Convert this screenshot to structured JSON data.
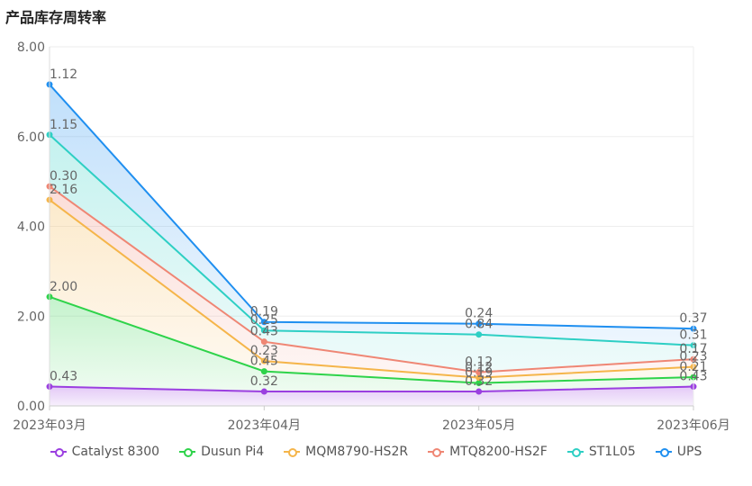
{
  "chart_data": {
    "type": "area",
    "title": "产品库存周转率",
    "x": [
      "2023年03月",
      "2023年04月",
      "2023年05月",
      "2023年06月"
    ],
    "ylim": [
      0,
      8
    ],
    "yticks": [
      "0.00",
      "2.00",
      "4.00",
      "6.00",
      "8.00"
    ],
    "stacked": true,
    "grid": true,
    "legend_position": "bottom",
    "series": [
      {
        "name": "Catalyst 8300",
        "color": "#9b3fe0",
        "values": [
          0.43,
          0.32,
          0.32,
          0.43
        ],
        "labels": [
          "0.43",
          "0.32",
          "0.32",
          "0.43"
        ]
      },
      {
        "name": "Dusun Pi4",
        "color": "#2ed34a",
        "values": [
          2.0,
          0.45,
          0.19,
          0.21
        ],
        "labels": [
          "2.00",
          "0.45",
          "0.19",
          "0.21"
        ]
      },
      {
        "name": "MQM8790-HS2R",
        "color": "#f5b54a",
        "values": [
          2.16,
          0.23,
          0.12,
          0.23
        ],
        "labels": [
          "2.16",
          "0.23",
          "0.12",
          "0.23"
        ]
      },
      {
        "name": "MTQ8200-HS2F",
        "color": "#ef8674",
        "values": [
          0.3,
          0.43,
          0.12,
          0.17
        ],
        "labels": [
          "0.30",
          "0.43",
          "0.12",
          "0.17"
        ]
      },
      {
        "name": "ST1L05",
        "color": "#2ecfc4",
        "values": [
          1.15,
          0.25,
          0.84,
          0.31
        ],
        "labels": [
          "1.15",
          "0.25",
          "0.84",
          "0.31"
        ]
      },
      {
        "name": "UPS",
        "color": "#1f8ff0",
        "values": [
          1.12,
          0.19,
          0.24,
          0.37
        ],
        "labels": [
          "1.12",
          "0.19",
          "0.24",
          "0.37"
        ]
      }
    ]
  }
}
